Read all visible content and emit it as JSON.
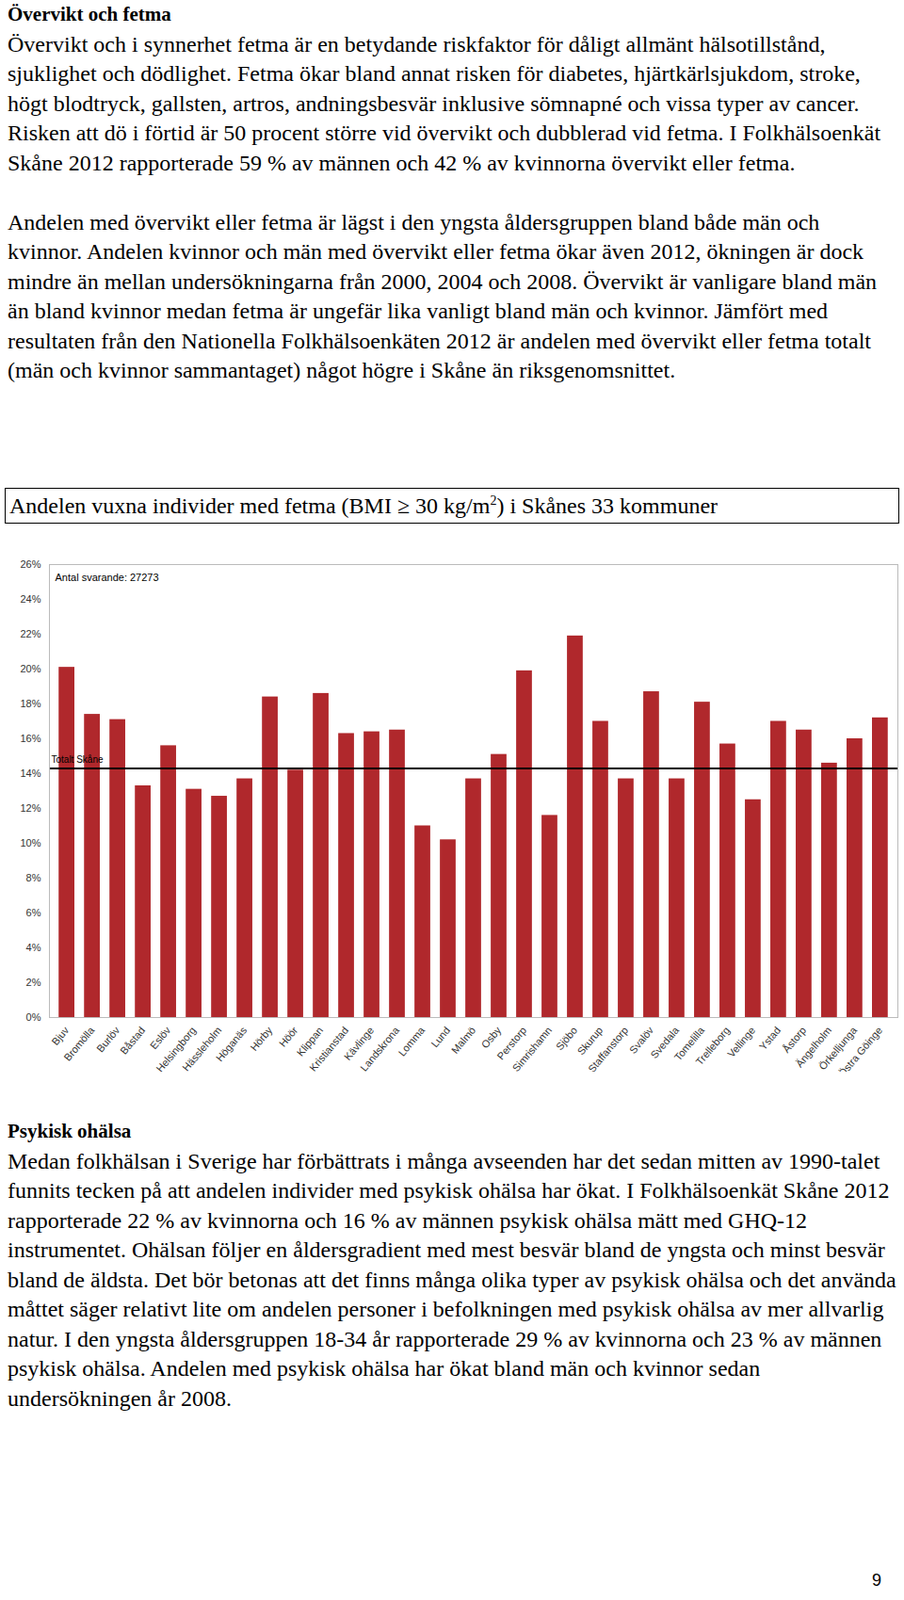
{
  "section1": {
    "heading": "Övervikt och fetma",
    "paragraphs": [
      "Övervikt och i synnerhet fetma är en betydande riskfaktor för dåligt allmänt hälsotillstånd, sjuklighet och dödlighet. Fetma ökar bland annat risken för diabetes, hjärtkärlsjukdom, stroke, högt blodtryck, gallsten, artros, andningsbesvär inklusive sömnapné och vissa typer av cancer. Risken att dö i förtid är 50 procent större vid övervikt och dubblerad vid fetma. I Folkhälsoenkät Skåne 2012 rapporterade 59 % av männen och 42 % av kvinnorna övervikt eller fetma.",
      "Andelen med övervikt eller fetma är lägst i den yngsta åldersgruppen bland både män och kvinnor. Andelen kvinnor och män med övervikt eller fetma ökar även 2012, ökningen är dock mindre än mellan undersökningarna från 2000, 2004 och 2008. Övervikt är vanligare bland män än bland kvinnor medan fetma är ungefär lika vanligt bland män och kvinnor. Jämfört med resultaten från den Nationella Folkhälsoenkäten 2012 är andelen med övervikt eller fetma totalt (män och kvinnor sammantaget) något högre i Skåne än riksgenomsnittet."
    ]
  },
  "figure_caption": {
    "before": "Andelen vuxna individer med fetma (BMI ≥ 30 kg/m",
    "superscript": "2",
    "after": ") i Skånes 33 kommuner"
  },
  "chart_data": {
    "type": "bar",
    "categories": [
      "Bjuv",
      "Bromölla",
      "Burlöv",
      "Båstad",
      "Eslöv",
      "Helsingborg",
      "Hässleholm",
      "Höganäs",
      "Hörby",
      "Höör",
      "Klippan",
      "Kristianstad",
      "Kävlinge",
      "Landskrona",
      "Lomma",
      "Lund",
      "Malmö",
      "Osby",
      "Perstorp",
      "Simrishamn",
      "Sjöbo",
      "Skurup",
      "Staffanstorp",
      "Svalöv",
      "Svedala",
      "Tomelilla",
      "Trelleborg",
      "Vellinge",
      "Ystad",
      "Åstorp",
      "Ängelholm",
      "Örkelljunga",
      "Östra Göinge"
    ],
    "values": [
      20.1,
      17.4,
      17.1,
      13.3,
      15.6,
      13.1,
      12.7,
      13.7,
      18.4,
      14.2,
      18.6,
      16.3,
      16.4,
      16.5,
      11.0,
      10.2,
      13.7,
      15.1,
      19.9,
      11.6,
      21.9,
      17.0,
      13.7,
      18.7,
      13.7,
      18.1,
      15.7,
      12.5,
      17.0,
      16.5,
      14.6,
      16.0,
      17.2
    ],
    "color": "#b0282c",
    "ylim": [
      0,
      26
    ],
    "yticks": [
      {
        "value": 0,
        "label": "0%"
      },
      {
        "value": 2,
        "label": "2%"
      },
      {
        "value": 4,
        "label": "4%"
      },
      {
        "value": 6,
        "label": "6%"
      },
      {
        "value": 8,
        "label": "8%"
      },
      {
        "value": 10,
        "label": "10%"
      },
      {
        "value": 12,
        "label": "12%"
      },
      {
        "value": 14,
        "label": "14%"
      },
      {
        "value": 16,
        "label": "16%"
      },
      {
        "value": 18,
        "label": "18%"
      },
      {
        "value": 20,
        "label": "20%"
      },
      {
        "value": 22,
        "label": "22%"
      },
      {
        "value": 24,
        "label": "24%"
      },
      {
        "value": 26,
        "label": "26%"
      }
    ],
    "grid": false,
    "annotations": [
      "Antal svarande: 27273"
    ],
    "reference_line": {
      "label": "Totalt Skåne",
      "value": 14.3
    }
  },
  "section2": {
    "heading": "Psykisk ohälsa",
    "paragraphs": [
      "Medan folkhälsan i Sverige har förbättrats i många avseenden har det sedan mitten av 1990-talet funnits tecken på att andelen individer med psykisk ohälsa har ökat. I Folkhälsoenkät Skåne 2012 rapporterade 22 % av kvinnorna och 16 % av männen psykisk ohälsa mätt med GHQ-12 instrumentet. Ohälsan följer en åldersgradient med mest besvär bland de yngsta och minst besvär bland de äldsta. Det bör betonas att det finns många olika typer av psykisk ohälsa och det använda måttet säger relativt lite om andelen personer i befolkningen med psykisk ohälsa av mer allvarlig natur. I den yngsta åldersgruppen 18-34 år rapporterade 29 % av kvinnorna och 23 % av männen psykisk ohälsa. Andelen med psykisk ohälsa har ökat bland män och kvinnor sedan undersökningen år 2008."
    ]
  },
  "page_number": 9
}
